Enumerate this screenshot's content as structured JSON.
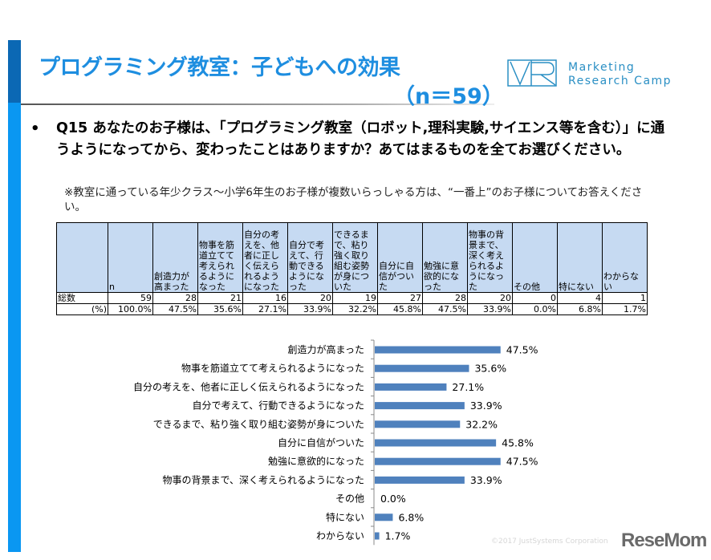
{
  "header": {
    "title": "プログラミング教室：子どもへの効果",
    "sample": "（n＝59）",
    "logo_text_line1": "Marketing",
    "logo_text_line2": "Research Camp"
  },
  "question": {
    "bullet": "•",
    "text": "Q15 あなたのお子様は、「プログラミング教室（ロボット,理科実験,サイエンス等を含む）」に通うようになってから、変わったことはありますか？あてはまるものを全てお選びください。",
    "note": "※教室に通っている年少クラス～小学6年生のお子様が複数いらっしゃる方は、“一番上”のお子様についてお答えください。"
  },
  "table": {
    "headers": [
      "",
      "n",
      "創造力が高まった",
      "物事を筋道立てて考えられるようになった",
      "自分の考えを、他者に正しく伝えられるようになった",
      "自分で考えて、行動できるようになった",
      "できるまで、粘り強く取り組む姿勢が身についた",
      "自分に自信がついた",
      "勉強に意欲的になった",
      "物事の背景まで、深く考えられるようになった",
      "その他",
      "特にない",
      "わからない"
    ],
    "rows": [
      [
        "総数",
        "59",
        "28",
        "21",
        "16",
        "20",
        "19",
        "27",
        "28",
        "20",
        "0",
        "4",
        "1"
      ],
      [
        "(%)",
        "100.0%",
        "47.5%",
        "35.6%",
        "27.1%",
        "33.9%",
        "32.2%",
        "45.8%",
        "47.5%",
        "33.9%",
        "0.0%",
        "6.8%",
        "1.7%"
      ]
    ]
  },
  "chart_data": {
    "type": "bar",
    "orientation": "horizontal",
    "categories": [
      "創造力が高まった",
      "物事を筋道立てて考えられるようになった",
      "自分の考えを、他者に正しく伝えられるようになった",
      "自分で考えて、行動できるようになった",
      "できるまで、粘り強く取り組む姿勢が身についた",
      "自分に自信がついた",
      "勉強に意欲的になった",
      "物事の背景まで、深く考えられるようになった",
      "その他",
      "特にない",
      "わからない"
    ],
    "values": [
      47.5,
      35.6,
      27.1,
      33.9,
      32.2,
      45.8,
      47.5,
      33.9,
      0.0,
      6.8,
      1.7
    ],
    "labels": [
      "47.5%",
      "35.6%",
      "27.1%",
      "33.9%",
      "32.2%",
      "45.8%",
      "47.5%",
      "33.9%",
      "0.0%",
      "6.8%",
      "1.7%"
    ],
    "unit": "%",
    "color": "#4f81bd",
    "grid": false
  },
  "footer": {
    "copyright": "©2017 JustSystems Corporation",
    "watermark": "ReseMom"
  },
  "colors": {
    "title": "#1e8ee0",
    "accent_dark": "#0b68b4",
    "accent_light": "#0a97f2",
    "table_header": "#c6daf2"
  }
}
